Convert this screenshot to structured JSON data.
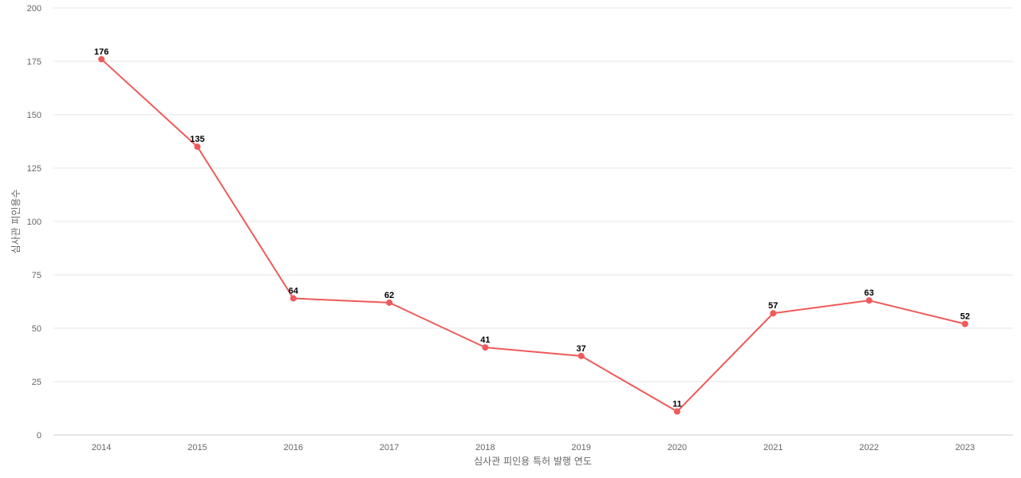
{
  "chart_data": {
    "type": "line",
    "categories": [
      "2014",
      "2015",
      "2016",
      "2017",
      "2018",
      "2019",
      "2020",
      "2021",
      "2022",
      "2023"
    ],
    "series": [
      {
        "values": [
          176,
          135,
          64,
          62,
          41,
          37,
          11,
          57,
          63,
          52
        ],
        "color": "#ef5a5a"
      }
    ],
    "xlabel": "심사관 피인용 특허 발행 연도",
    "ylabel": "심사관 피인용수",
    "ylim": [
      0,
      200
    ],
    "yticks": [
      "0",
      "25",
      "50",
      "75",
      "100",
      "125",
      "150",
      "175",
      "200"
    ],
    "grid": true,
    "data_labels": true
  }
}
